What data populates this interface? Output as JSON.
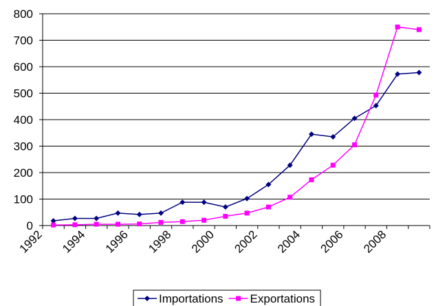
{
  "chart_data": {
    "type": "line",
    "x": [
      1992,
      1993,
      1994,
      1995,
      1996,
      1997,
      1998,
      1999,
      2000,
      2001,
      2002,
      2003,
      2004,
      2005,
      2006,
      2007,
      2008,
      2009
    ],
    "x_tick_labels": [
      "1992",
      "1994",
      "1996",
      "1998",
      "2000",
      "2002",
      "2004",
      "2006",
      "2008"
    ],
    "y_tick_labels": [
      "0",
      "100",
      "200",
      "300",
      "400",
      "500",
      "600",
      "700",
      "800"
    ],
    "ylim": [
      0,
      800
    ],
    "grid": true,
    "legend_position": "bottom",
    "series": [
      {
        "name": "Importations",
        "color": "#000080",
        "marker": "diamond",
        "values": [
          18,
          27,
          27,
          47,
          42,
          47,
          88,
          88,
          70,
          102,
          155,
          228,
          345,
          335,
          405,
          453,
          572,
          578
        ]
      },
      {
        "name": "Exportations",
        "color": "#FF00FF",
        "marker": "square",
        "values": [
          2,
          3,
          5,
          5,
          6,
          12,
          15,
          20,
          35,
          47,
          70,
          107,
          173,
          228,
          305,
          493,
          750,
          740
        ]
      }
    ]
  }
}
